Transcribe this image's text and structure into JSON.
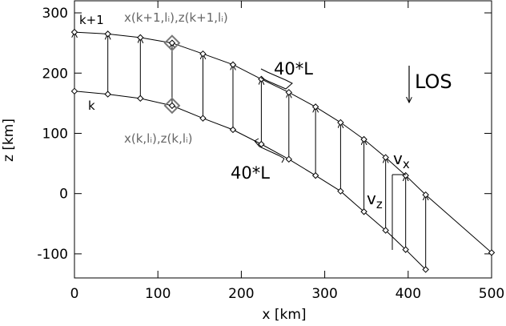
{
  "chart_data": {
    "type": "diagram",
    "xlabel": "x [km]",
    "ylabel": "z [km]",
    "xlim": [
      0,
      500
    ],
    "ylim": [
      -140,
      320
    ],
    "xticks": [
      0,
      100,
      200,
      300,
      400,
      500
    ],
    "yticks": [
      -100,
      0,
      100,
      200,
      300
    ],
    "grid": false,
    "curves": {
      "upper": {
        "name": "k+1",
        "points": [
          [
            0,
            268
          ],
          [
            40,
            265
          ],
          [
            79,
            259
          ],
          [
            117,
            250
          ],
          [
            154,
            232
          ],
          [
            190,
            214
          ],
          [
            224,
            190
          ],
          [
            257,
            168
          ],
          [
            289,
            144
          ],
          [
            319,
            118
          ],
          [
            347,
            90
          ],
          [
            373,
            60
          ],
          [
            397,
            30
          ],
          [
            421,
            -2
          ],
          [
            500,
            -98
          ]
        ]
      },
      "lower": {
        "name": "k",
        "points": [
          [
            0,
            170
          ],
          [
            40,
            165
          ],
          [
            79,
            158
          ],
          [
            117,
            146
          ],
          [
            154,
            125
          ],
          [
            190,
            106
          ],
          [
            224,
            82
          ],
          [
            257,
            57
          ],
          [
            289,
            30
          ],
          [
            319,
            4
          ],
          [
            347,
            -30
          ],
          [
            373,
            -61
          ],
          [
            397,
            -93
          ],
          [
            421,
            -126
          ]
        ]
      }
    },
    "vectors": [
      [
        [
          0,
          170
        ],
        [
          0,
          268
        ]
      ],
      [
        [
          40,
          165
        ],
        [
          40,
          265
        ]
      ],
      [
        [
          79,
          158
        ],
        [
          79,
          259
        ]
      ],
      [
        [
          117,
          146
        ],
        [
          117,
          250
        ]
      ],
      [
        [
          154,
          125
        ],
        [
          154,
          232
        ]
      ],
      [
        [
          190,
          106
        ],
        [
          190,
          214
        ]
      ],
      [
        [
          224,
          82
        ],
        [
          224,
          190
        ]
      ],
      [
        [
          257,
          57
        ],
        [
          257,
          168
        ]
      ],
      [
        [
          289,
          30
        ],
        [
          289,
          144
        ]
      ],
      [
        [
          319,
          4
        ],
        [
          319,
          118
        ]
      ],
      [
        [
          347,
          -30
        ],
        [
          347,
          90
        ]
      ],
      [
        [
          373,
          -61
        ],
        [
          373,
          60
        ]
      ],
      [
        [
          397,
          -93
        ],
        [
          397,
          30
        ]
      ],
      [
        [
          421,
          -126
        ],
        [
          421,
          -2
        ]
      ]
    ],
    "highlighted_points": [
      [
        117,
        250
      ],
      [
        117,
        146
      ]
    ],
    "labels": {
      "upper_curve": "k+1",
      "lower_curve": "k",
      "upper_point": "x(k+1,lᵢ),z(k+1,lᵢ)",
      "lower_point": "x(k,lᵢ),z(k,lᵢ)",
      "segment_upper": "40*L",
      "segment_lower": "40*L",
      "los": "LOS",
      "vx": "v",
      "vx_sub": "x",
      "vz": "v",
      "vz_sub": "z"
    }
  }
}
